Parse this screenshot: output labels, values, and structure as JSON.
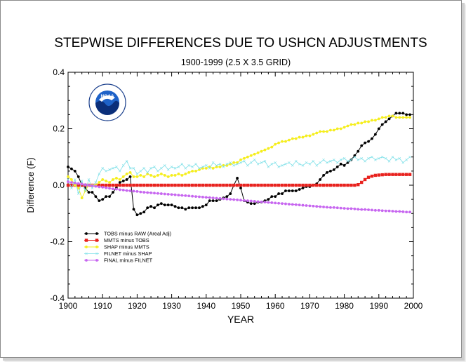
{
  "chart_data": {
    "type": "line",
    "title": "STEPWISE DIFFERENCES DUE TO USHCN ADJUSTMENTS",
    "subtitle": "1900-1999 (2.5 X 3.5 GRID)",
    "xlabel": "YEAR",
    "ylabel": "Difference (F)",
    "xlim": [
      1900,
      2000
    ],
    "ylim": [
      -0.4,
      0.4
    ],
    "xticks": [
      1900,
      1910,
      1920,
      1930,
      1940,
      1950,
      1960,
      1970,
      1980,
      1990,
      2000
    ],
    "yticks": [
      -0.4,
      -0.2,
      0.0,
      0.2,
      0.4
    ],
    "ytick_labels": [
      "-0.4",
      "-0.2",
      "0.0",
      "0.2",
      "0.4"
    ],
    "grid": false,
    "legend_position": "lower-left",
    "logo": {
      "name": "noaa-logo",
      "text": "NOAA"
    },
    "series": [
      {
        "name": "TOBS minus RAW (Areal Adj)",
        "color": "#000000",
        "marker": "dot",
        "x": [
          1900,
          1901,
          1902,
          1903,
          1904,
          1905,
          1906,
          1907,
          1908,
          1909,
          1910,
          1911,
          1912,
          1913,
          1914,
          1915,
          1916,
          1917,
          1918,
          1919,
          1920,
          1921,
          1922,
          1923,
          1924,
          1925,
          1926,
          1927,
          1928,
          1929,
          1930,
          1931,
          1932,
          1933,
          1934,
          1935,
          1936,
          1937,
          1938,
          1939,
          1940,
          1941,
          1942,
          1943,
          1944,
          1945,
          1946,
          1947,
          1948,
          1949,
          1950,
          1951,
          1952,
          1953,
          1954,
          1955,
          1956,
          1957,
          1958,
          1959,
          1960,
          1961,
          1962,
          1963,
          1964,
          1965,
          1966,
          1967,
          1968,
          1969,
          1970,
          1971,
          1972,
          1973,
          1974,
          1975,
          1976,
          1977,
          1978,
          1979,
          1980,
          1981,
          1982,
          1983,
          1984,
          1985,
          1986,
          1987,
          1988,
          1989,
          1990,
          1991,
          1992,
          1993,
          1994,
          1995,
          1996,
          1997,
          1998,
          1999
        ],
        "values": [
          0.065,
          0.058,
          0.05,
          0.03,
          0.0,
          -0.01,
          -0.025,
          -0.025,
          -0.04,
          -0.055,
          -0.05,
          -0.04,
          -0.04,
          -0.025,
          -0.01,
          0.01,
          0.015,
          0.02,
          0.03,
          -0.085,
          -0.105,
          -0.1,
          -0.095,
          -0.08,
          -0.075,
          -0.08,
          -0.07,
          -0.065,
          -0.07,
          -0.07,
          -0.07,
          -0.075,
          -0.08,
          -0.08,
          -0.085,
          -0.08,
          -0.08,
          -0.08,
          -0.08,
          -0.075,
          -0.07,
          -0.055,
          -0.055,
          -0.055,
          -0.05,
          -0.045,
          -0.04,
          -0.03,
          0.0,
          0.025,
          -0.01,
          -0.055,
          -0.06,
          -0.065,
          -0.065,
          -0.06,
          -0.06,
          -0.055,
          -0.05,
          -0.04,
          -0.04,
          -0.03,
          -0.03,
          -0.02,
          -0.02,
          -0.02,
          -0.02,
          -0.015,
          -0.01,
          -0.005,
          -0.005,
          0.0,
          0.005,
          0.02,
          0.035,
          0.045,
          0.05,
          0.055,
          0.065,
          0.075,
          0.07,
          0.08,
          0.09,
          0.105,
          0.12,
          0.14,
          0.15,
          0.155,
          0.165,
          0.18,
          0.2,
          0.215,
          0.225,
          0.235,
          0.245,
          0.255,
          0.255,
          0.255,
          0.25,
          0.25
        ]
      },
      {
        "name": "MMTS minus TOBS",
        "color": "#e8221e",
        "marker": "square",
        "x": [
          1900,
          1901,
          1902,
          1903,
          1904,
          1905,
          1906,
          1907,
          1908,
          1909,
          1910,
          1911,
          1912,
          1913,
          1914,
          1915,
          1916,
          1917,
          1918,
          1919,
          1920,
          1921,
          1922,
          1923,
          1924,
          1925,
          1926,
          1927,
          1928,
          1929,
          1930,
          1931,
          1932,
          1933,
          1934,
          1935,
          1936,
          1937,
          1938,
          1939,
          1940,
          1941,
          1942,
          1943,
          1944,
          1945,
          1946,
          1947,
          1948,
          1949,
          1950,
          1951,
          1952,
          1953,
          1954,
          1955,
          1956,
          1957,
          1958,
          1959,
          1960,
          1961,
          1962,
          1963,
          1964,
          1965,
          1966,
          1967,
          1968,
          1969,
          1970,
          1971,
          1972,
          1973,
          1974,
          1975,
          1976,
          1977,
          1978,
          1979,
          1980,
          1981,
          1982,
          1983,
          1984,
          1985,
          1986,
          1987,
          1988,
          1989,
          1990,
          1991,
          1992,
          1993,
          1994,
          1995,
          1996,
          1997,
          1998,
          1999
        ],
        "values": [
          0.0,
          0.0,
          0.0,
          0.0,
          0.0,
          0.0,
          0.0,
          0.0,
          0.0,
          0.0,
          0.0,
          0.0,
          0.0,
          0.0,
          0.0,
          0.0,
          0.0,
          0.0,
          0.0,
          0.0,
          0.0,
          0.0,
          0.0,
          0.0,
          0.0,
          0.0,
          0.0,
          0.0,
          0.0,
          0.0,
          0.0,
          0.0,
          0.0,
          0.0,
          0.0,
          0.0,
          0.0,
          0.0,
          0.0,
          0.0,
          0.0,
          0.0,
          0.0,
          0.0,
          0.0,
          0.0,
          0.0,
          0.0,
          0.0,
          0.0,
          0.0,
          0.0,
          0.0,
          0.0,
          0.0,
          0.0,
          0.0,
          0.0,
          0.0,
          0.0,
          0.0,
          0.0,
          0.0,
          0.0,
          0.0,
          0.0,
          0.0,
          0.0,
          0.0,
          0.0,
          0.0,
          0.0,
          0.0,
          0.0,
          0.0,
          0.0,
          0.0,
          0.0,
          0.0,
          0.0,
          0.0,
          0.0,
          0.0,
          0.0,
          0.002,
          0.01,
          0.02,
          0.028,
          0.032,
          0.035,
          0.036,
          0.037,
          0.038,
          0.038,
          0.038,
          0.038,
          0.038,
          0.038,
          0.038,
          0.038
        ]
      },
      {
        "name": "SHAP minus MMTS",
        "color": "#f5ee1e",
        "marker": "dot",
        "x": [
          1900,
          1901,
          1902,
          1903,
          1904,
          1905,
          1906,
          1907,
          1908,
          1909,
          1910,
          1911,
          1912,
          1913,
          1914,
          1915,
          1916,
          1917,
          1918,
          1919,
          1920,
          1921,
          1922,
          1923,
          1924,
          1925,
          1926,
          1927,
          1928,
          1929,
          1930,
          1931,
          1932,
          1933,
          1934,
          1935,
          1936,
          1937,
          1938,
          1939,
          1940,
          1941,
          1942,
          1943,
          1944,
          1945,
          1946,
          1947,
          1948,
          1949,
          1950,
          1951,
          1952,
          1953,
          1954,
          1955,
          1956,
          1957,
          1958,
          1959,
          1960,
          1961,
          1962,
          1963,
          1964,
          1965,
          1966,
          1967,
          1968,
          1969,
          1970,
          1971,
          1972,
          1973,
          1974,
          1975,
          1976,
          1977,
          1978,
          1979,
          1980,
          1981,
          1982,
          1983,
          1984,
          1985,
          1986,
          1987,
          1988,
          1989,
          1990,
          1991,
          1992,
          1993,
          1994,
          1995,
          1996,
          1997,
          1998,
          1999
        ],
        "values": [
          0.03,
          0.02,
          0.0,
          -0.01,
          -0.045,
          -0.02,
          0.0,
          0.0,
          0.0,
          0.01,
          0.02,
          0.015,
          0.01,
          0.02,
          0.025,
          0.02,
          0.03,
          0.04,
          0.045,
          0.03,
          0.03,
          0.035,
          0.03,
          0.04,
          0.035,
          0.03,
          0.035,
          0.04,
          0.035,
          0.03,
          0.035,
          0.035,
          0.04,
          0.035,
          0.04,
          0.045,
          0.05,
          0.05,
          0.055,
          0.06,
          0.06,
          0.065,
          0.06,
          0.065,
          0.065,
          0.07,
          0.07,
          0.075,
          0.08,
          0.08,
          0.09,
          0.095,
          0.1,
          0.105,
          0.11,
          0.115,
          0.12,
          0.125,
          0.13,
          0.135,
          0.145,
          0.15,
          0.155,
          0.155,
          0.16,
          0.165,
          0.165,
          0.17,
          0.17,
          0.175,
          0.175,
          0.18,
          0.185,
          0.19,
          0.19,
          0.19,
          0.195,
          0.195,
          0.2,
          0.2,
          0.205,
          0.21,
          0.215,
          0.215,
          0.22,
          0.22,
          0.225,
          0.225,
          0.23,
          0.23,
          0.235,
          0.24,
          0.24,
          0.245,
          0.245,
          0.24,
          0.24,
          0.24,
          0.24,
          0.24
        ]
      },
      {
        "name": "FILNET minus SHAP",
        "color": "#7fe0e8",
        "marker": "cross",
        "x": [
          1900,
          1901,
          1902,
          1903,
          1904,
          1905,
          1906,
          1907,
          1908,
          1909,
          1910,
          1911,
          1912,
          1913,
          1914,
          1915,
          1916,
          1917,
          1918,
          1919,
          1920,
          1921,
          1922,
          1923,
          1924,
          1925,
          1926,
          1927,
          1928,
          1929,
          1930,
          1931,
          1932,
          1933,
          1934,
          1935,
          1936,
          1937,
          1938,
          1939,
          1940,
          1941,
          1942,
          1943,
          1944,
          1945,
          1946,
          1947,
          1948,
          1949,
          1950,
          1951,
          1952,
          1953,
          1954,
          1955,
          1956,
          1957,
          1958,
          1959,
          1960,
          1961,
          1962,
          1963,
          1964,
          1965,
          1966,
          1967,
          1968,
          1969,
          1970,
          1971,
          1972,
          1973,
          1974,
          1975,
          1976,
          1977,
          1978,
          1979,
          1980,
          1981,
          1982,
          1983,
          1984,
          1985,
          1986,
          1987,
          1988,
          1989,
          1990,
          1991,
          1992,
          1993,
          1994,
          1995,
          1996,
          1997,
          1998,
          1999
        ],
        "values": [
          0.02,
          -0.01,
          0.02,
          -0.03,
          0.015,
          -0.02,
          0.02,
          -0.01,
          0.01,
          0.04,
          0.06,
          0.05,
          0.055,
          0.06,
          0.065,
          0.05,
          0.07,
          0.085,
          0.06,
          0.06,
          0.04,
          0.05,
          0.06,
          0.045,
          0.06,
          0.065,
          0.05,
          0.06,
          0.07,
          0.055,
          0.065,
          0.06,
          0.065,
          0.075,
          0.06,
          0.07,
          0.065,
          0.075,
          0.06,
          0.065,
          0.07,
          0.06,
          0.08,
          0.07,
          0.075,
          0.065,
          0.075,
          0.08,
          0.07,
          0.075,
          0.08,
          0.085,
          0.07,
          0.08,
          0.09,
          0.075,
          0.08,
          0.085,
          0.065,
          0.075,
          0.08,
          0.065,
          0.07,
          0.075,
          0.08,
          0.07,
          0.085,
          0.075,
          0.07,
          0.08,
          0.075,
          0.085,
          0.07,
          0.08,
          0.09,
          0.08,
          0.085,
          0.09,
          0.08,
          0.09,
          0.095,
          0.085,
          0.09,
          0.1,
          0.09,
          0.095,
          0.085,
          0.095,
          0.1,
          0.09,
          0.095,
          0.1,
          0.095,
          0.085,
          0.1,
          0.09,
          0.095,
          0.08,
          0.09,
          0.1
        ]
      },
      {
        "name": "FINAL minus FILNET",
        "color": "#c766f0",
        "marker": "dot",
        "x": [
          1900,
          1901,
          1902,
          1903,
          1904,
          1905,
          1906,
          1907,
          1908,
          1909,
          1910,
          1911,
          1912,
          1913,
          1914,
          1915,
          1916,
          1917,
          1918,
          1919,
          1920,
          1921,
          1922,
          1923,
          1924,
          1925,
          1926,
          1927,
          1928,
          1929,
          1930,
          1931,
          1932,
          1933,
          1934,
          1935,
          1936,
          1937,
          1938,
          1939,
          1940,
          1941,
          1942,
          1943,
          1944,
          1945,
          1946,
          1947,
          1948,
          1949,
          1950,
          1951,
          1952,
          1953,
          1954,
          1955,
          1956,
          1957,
          1958,
          1959,
          1960,
          1961,
          1962,
          1963,
          1964,
          1965,
          1966,
          1967,
          1968,
          1969,
          1970,
          1971,
          1972,
          1973,
          1974,
          1975,
          1976,
          1977,
          1978,
          1979,
          1980,
          1981,
          1982,
          1983,
          1984,
          1985,
          1986,
          1987,
          1988,
          1989,
          1990,
          1991,
          1992,
          1993,
          1994,
          1995,
          1996,
          1997,
          1998,
          1999
        ],
        "values": [
          0.012,
          0.01,
          0.008,
          0.006,
          0.004,
          0.002,
          0.0,
          -0.002,
          -0.004,
          -0.006,
          -0.007,
          -0.009,
          -0.011,
          -0.013,
          -0.014,
          -0.016,
          -0.017,
          -0.019,
          -0.02,
          -0.021,
          -0.022,
          -0.024,
          -0.025,
          -0.026,
          -0.027,
          -0.028,
          -0.029,
          -0.03,
          -0.031,
          -0.032,
          -0.033,
          -0.034,
          -0.035,
          -0.036,
          -0.037,
          -0.038,
          -0.039,
          -0.04,
          -0.041,
          -0.042,
          -0.043,
          -0.044,
          -0.045,
          -0.046,
          -0.047,
          -0.048,
          -0.049,
          -0.05,
          -0.051,
          -0.052,
          -0.053,
          -0.054,
          -0.055,
          -0.056,
          -0.057,
          -0.058,
          -0.059,
          -0.06,
          -0.061,
          -0.062,
          -0.063,
          -0.064,
          -0.065,
          -0.066,
          -0.067,
          -0.068,
          -0.069,
          -0.07,
          -0.071,
          -0.072,
          -0.073,
          -0.074,
          -0.075,
          -0.076,
          -0.077,
          -0.078,
          -0.079,
          -0.079,
          -0.08,
          -0.081,
          -0.082,
          -0.083,
          -0.083,
          -0.084,
          -0.085,
          -0.086,
          -0.086,
          -0.087,
          -0.088,
          -0.089,
          -0.089,
          -0.09,
          -0.091,
          -0.091,
          -0.092,
          -0.093,
          -0.093,
          -0.094,
          -0.095,
          -0.095
        ]
      }
    ]
  }
}
